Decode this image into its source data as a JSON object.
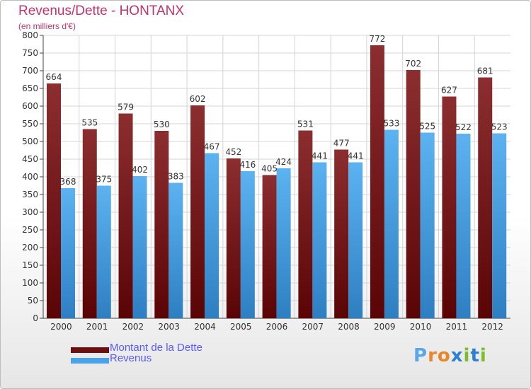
{
  "header": {
    "title": "Revenus/Dette - HONTANX",
    "subtitle": "(en milliers d'€)"
  },
  "legend": {
    "items": [
      {
        "label": "Montant de la Dette",
        "color": "#6b0f10"
      },
      {
        "label": "Revenus",
        "color": "#4aa3e6"
      }
    ]
  },
  "brand": {
    "text": "Proxiti",
    "letter_colors": [
      "#5aa6e6",
      "#e8862a",
      "#e8862a",
      "#2e7fd0",
      "#7bbd2a",
      "#2e7fd0",
      "#7bbd2a"
    ]
  },
  "chart_data": {
    "type": "bar",
    "title": "Revenus/Dette - HONTANX",
    "subtitle": "(en milliers d'€)",
    "categories": [
      "2000",
      "2001",
      "2002",
      "2003",
      "2004",
      "2005",
      "2006",
      "2007",
      "2008",
      "2009",
      "2010",
      "2011",
      "2012"
    ],
    "series": [
      {
        "name": "Montant de la Dette",
        "color": "#7a1c1e",
        "values": [
          664,
          535,
          579,
          530,
          602,
          452,
          405,
          531,
          477,
          772,
          702,
          627,
          681
        ]
      },
      {
        "name": "Revenus",
        "color": "#4aa3e6",
        "values": [
          368,
          375,
          402,
          383,
          467,
          416,
          424,
          441,
          441,
          533,
          525,
          522,
          523
        ]
      }
    ],
    "ylim": [
      0,
      800
    ],
    "ytick_step": 50,
    "grid": true,
    "legend_position": "bottom-left"
  }
}
